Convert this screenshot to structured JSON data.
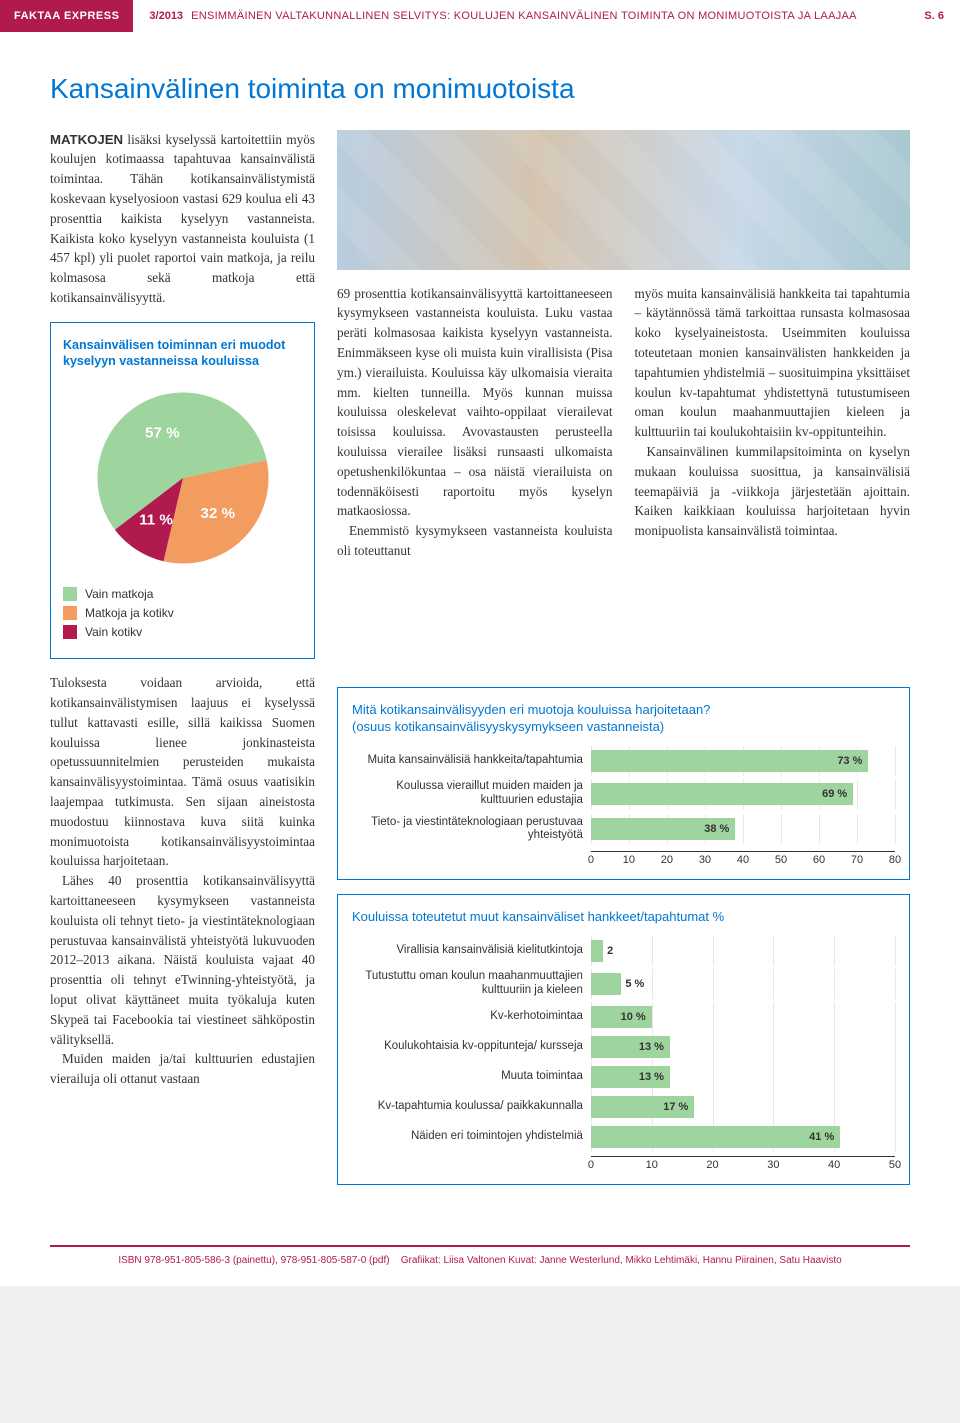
{
  "header": {
    "brand": "FAKTAA EXPRESS",
    "issue": "3/2013",
    "title": "ENSIMMÄINEN VALTAKUNNALLINEN SELVITYS: KOULUJEN KANSAINVÄLINEN TOIMINTA ON MONIMUOTOISTA JA LAAJAA",
    "page": "S. 6"
  },
  "section_title": "Kansainvälinen toiminta on monimuotoista",
  "intro_emph": "MATKOJEN",
  "col_left_p1": " lisäksi kyselyssä kartoitettiin myös koulujen kotimaassa tapahtuvaa kansainvälistä toimintaa. Tähän kotikansainvälistymistä koskevaan kyselyosioon vastasi 629 koulua eli 43 prosenttia kaikista kyselyyn vastanneista. Kaikista koko kyselyyn vastanneista kouluista (1 457 kpl) yli puolet raportoi vain matkoja, ja reilu kolmasosa sekä matkoja että kotikansainvälisyyttä.",
  "pie_box": {
    "title": "Kansainvälisen toiminnan eri muodot kyselyyn vastanneissa kouluissa",
    "slices": [
      {
        "label": "Vain matkoja",
        "value": 57,
        "text": "57 %",
        "color": "#9ed49e"
      },
      {
        "label": "Matkoja ja kotikv",
        "value": 32,
        "text": "32 %",
        "color": "#f29c5f"
      },
      {
        "label": "Vain kotikv",
        "value": 11,
        "text": "11 %",
        "color": "#b11a4f"
      }
    ]
  },
  "col_mid_p1": "69 prosenttia kotikansainvälisyyttä kartoittaneeseen kysymykseen vastanneista kouluista. Luku vastaa peräti kolmasosaa kaikista kyselyyn vastanneista. Enimmäkseen kyse oli muista kuin virallisista (Pisa ym.) vierailuista. Kouluissa käy ulkomaisia vieraita mm. kielten tunneilla. Myös kunnan muissa kouluissa oleskelevat vaihto-oppilaat vierailevat toisissa kouluissa. Avovastausten perusteella kouluissa vierailee lisäksi runsaasti ulkomaista opetushenkilökuntaa – osa näistä vierailuista on todennäköisesti raportoitu myös kyselyn matkaosiossa.",
  "col_mid_p2": "Enemmistö kysymykseen vastanneista kouluista oli toteuttanut",
  "col_right_p1": "myös muita kansainvälisiä hankkeita tai tapahtumia – käytännössä tämä tarkoittaa runsasta kolmasosaa koko kyselyaineistosta. Useimmiten kouluissa toteutetaan monien kansainvälisten hankkeiden ja tapahtumien yhdistelmiä – suosituimpina yksittäiset koulun kv-tapahtumat yhdistettynä tutustumiseen oman koulun maahanmuuttajien kieleen ja kulttuuriin tai koulukohtaisiin kv-oppitunteihin.",
  "col_right_p2": "Kansainvälinen kummilapsitoiminta on kyselyn mukaan kouluissa suosittua, ja kansainvälisiä teemapäiviä ja -viikkoja järjestetään ajoittain. Kaiken kaikkiaan kouluissa harjoitetaan hyvin monipuolista kansainvälistä toimintaa.",
  "lower_left_p1": "Tuloksesta voidaan arvioida, että kotikansainvälistymisen laajuus ei kyselyssä tullut kattavasti esille, sillä kaikissa Suomen kouluissa lienee jonkinasteista opetussuunnitelmien perusteiden mukaista kansainvälisyystoimintaa. Tämä osuus vaatisikin laajempaa tutkimusta. Sen sijaan aineistosta muodostuu kiinnostava kuva siitä kuinka monimuotoista kotikansainvälisyystoimintaa kouluissa harjoitetaan.",
  "lower_left_p2": "Lähes 40 prosenttia kotikansainvälisyyttä kartoittaneeseen kysymykseen vastanneista kouluista oli tehnyt tieto- ja viestintäteknologiaan perustuvaa kansainvälistä yhteistyötä lukuvuoden 2012–2013 aikana. Näistä kouluista vajaat 40 prosenttia oli tehnyt eTwinning-yhteistyötä, ja loput olivat käyttäneet muita työkaluja kuten Skypeä tai Facebookia tai viestineet sähköpostin välityksellä.",
  "lower_left_p3": "Muiden maiden ja/tai kulttuurien edustajien vierailuja oli ottanut vastaan",
  "chart1": {
    "title": "Mitä kotikansainvälisyyden eri muotoja kouluissa harjoitetaan?",
    "subtitle": "(osuus kotikansainvälisyyskysymykseen vastanneista)",
    "bar_color": "#9ed49e",
    "xmax": 80,
    "xstep": 10,
    "rows": [
      {
        "label": "Muita kansainvälisiä hankkeita/tapahtumia",
        "value": 73,
        "text": "73 %"
      },
      {
        "label": "Koulussa vieraillut muiden maiden ja kulttuurien edustajia",
        "value": 69,
        "text": "69 %"
      },
      {
        "label": "Tieto- ja viestintäteknologiaan perustuvaa yhteistyötä",
        "value": 38,
        "text": "38 %"
      }
    ]
  },
  "chart2": {
    "title": "Kouluissa toteutetut muut kansainväliset hankkeet/tapahtumat %",
    "bar_color": "#9ed49e",
    "xmax": 50,
    "xstep": 10,
    "rows": [
      {
        "label": "Virallisia kansainvälisiä kielitutkintoja",
        "value": 2,
        "text": "2"
      },
      {
        "label": "Tutustuttu oman koulun maahan­muuttajien kulttuuriin ja kieleen",
        "value": 5,
        "text": "5 %"
      },
      {
        "label": "Kv-kerhotoimintaa",
        "value": 10,
        "text": "10 %"
      },
      {
        "label": "Koulukohtaisia kv-oppitunteja/ kursseja",
        "value": 13,
        "text": "13 %"
      },
      {
        "label": "Muuta toimintaa",
        "value": 13,
        "text": "13 %"
      },
      {
        "label": "Kv-tapahtumia koulussa/ paikkakunnalla",
        "value": 17,
        "text": "17 %"
      },
      {
        "label": "Näiden eri toimintojen yhdistelmiä",
        "value": 41,
        "text": "41 %"
      }
    ]
  },
  "footer": {
    "isbn": "ISBN 978-951-805-586-3 (painettu), 978-951-805-587-0 (pdf)",
    "credits": "Grafiikat: Liisa Valtonen  Kuvat: Janne Westerlund, Mikko Lehtimäki, Hannu Piirainen, Satu Haavisto"
  }
}
